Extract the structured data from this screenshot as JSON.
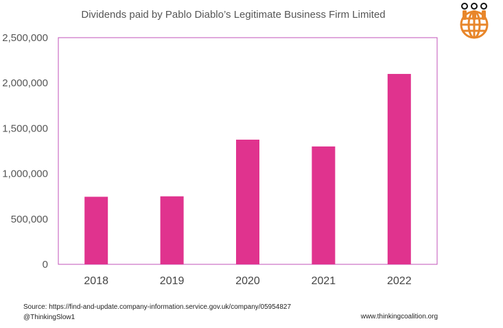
{
  "chart_data": {
    "type": "bar",
    "title": "Dividends paid by Pablo Diablo’s Legitimate Business Firm Limited",
    "categories": [
      "2018",
      "2019",
      "2020",
      "2021",
      "2022"
    ],
    "series": [
      {
        "values": [
          745000,
          750000,
          1375000,
          1300000,
          2100000
        ]
      }
    ],
    "yticks": [
      "0",
      "500,000",
      "1,000,000",
      "1,500,000",
      "2,000,000",
      "2,500,000"
    ],
    "ylim": [
      0,
      2500000
    ],
    "bar_color": "#e0338e",
    "frame_color": "#c050b8",
    "grid": false,
    "legend": "none"
  },
  "footer": {
    "source": "Source:  https://find-and-update.company-information.service.gov.uk/company/05954827",
    "handle": "@ThinkingSlow1",
    "website": "www.thinkingcoalition.org"
  },
  "logo": {
    "icon": "globe-people-icon",
    "color": "#e8862a"
  }
}
